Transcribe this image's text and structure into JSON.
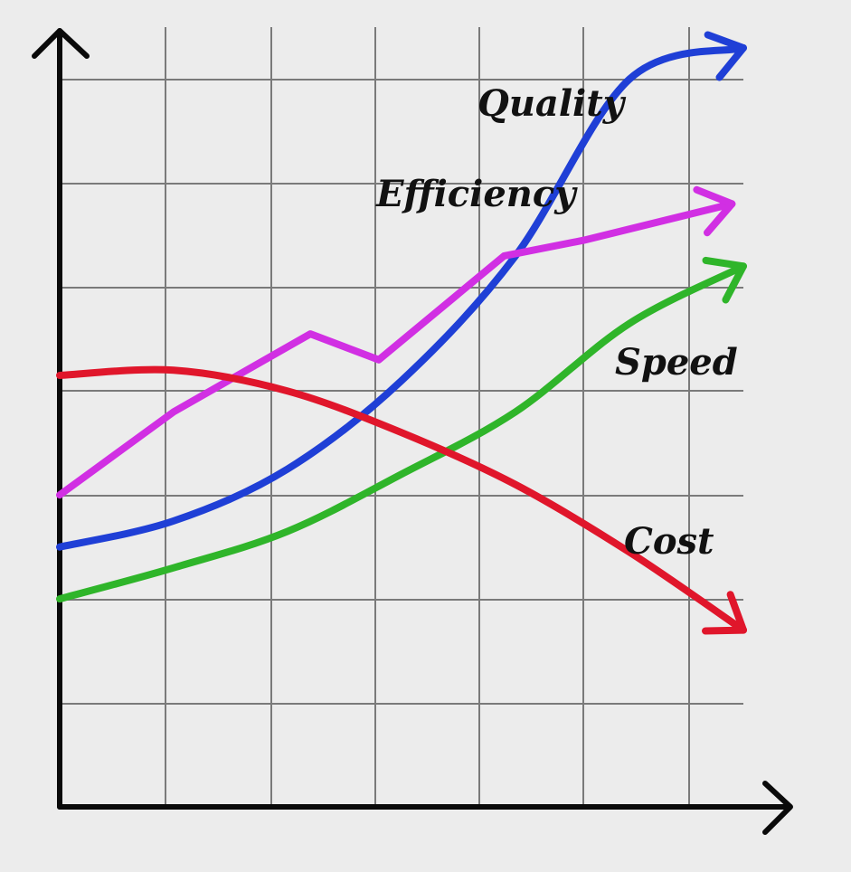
{
  "chart_data": {
    "type": "line",
    "title": "",
    "xlabel": "",
    "ylabel": "",
    "grid": true,
    "x_ticks": 0,
    "y_ticks": 0,
    "xlim": [
      0,
      6
    ],
    "ylim": [
      0,
      7.5
    ],
    "series": [
      {
        "name": "Quality",
        "color": "#1f3fd6",
        "x": [
          0,
          1,
          2,
          3,
          4,
          5,
          6.0
        ],
        "y": [
          2.5,
          2.75,
          3.25,
          4.1,
          5.3,
          7.0,
          7.3
        ],
        "label_key": "quality"
      },
      {
        "name": "Efficiency",
        "color": "#d12fe3",
        "x": [
          0,
          1,
          2.2,
          2.8,
          3.9,
          4.6,
          5.9
        ],
        "y": [
          3.0,
          3.8,
          4.55,
          4.3,
          5.3,
          5.45,
          5.8
        ],
        "label_key": "efficiency"
      },
      {
        "name": "Speed",
        "color": "#2fb52a",
        "x": [
          0,
          1,
          2,
          3,
          4,
          5,
          6.0
        ],
        "y": [
          2.0,
          2.3,
          2.65,
          3.2,
          3.8,
          4.65,
          5.2
        ],
        "label_key": "speed"
      },
      {
        "name": "Cost",
        "color": "#e0162b",
        "x": [
          0,
          1,
          2,
          3,
          4,
          5,
          6.0
        ],
        "y": [
          4.15,
          4.2,
          4.0,
          3.6,
          3.1,
          2.45,
          1.7
        ],
        "label_key": "cost"
      }
    ]
  },
  "labels": {
    "quality": "Quality",
    "efficiency": "Efficiency",
    "speed": "Speed",
    "cost": "Cost"
  }
}
